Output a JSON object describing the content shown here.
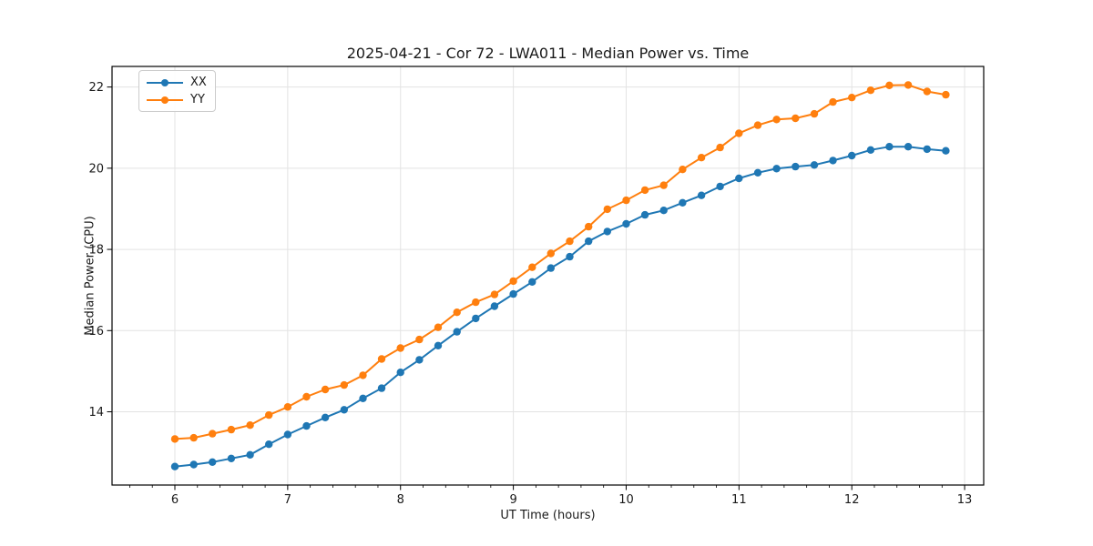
{
  "chart_data": {
    "type": "line",
    "title": "2025-04-21 - Cor 72 - LWA011 - Median Power vs. Time",
    "xlabel": "UT Time (hours)",
    "ylabel": "Median Power (CPU)",
    "xlim": [
      5.443,
      13.169
    ],
    "ylim": [
      12.196,
      22.507
    ],
    "x_ticks": [
      6,
      7,
      8,
      9,
      10,
      11,
      12,
      13
    ],
    "y_ticks": [
      14,
      16,
      18,
      20,
      22
    ],
    "x_minor_tick_step": 0.2,
    "grid": true,
    "legend_position": "upper-left",
    "axis_color": "#000000",
    "grid_color": "#e3e3e3",
    "text_color": "#1a1a1a",
    "x": [
      6.0,
      6.167,
      6.333,
      6.5,
      6.667,
      6.833,
      7.0,
      7.167,
      7.333,
      7.5,
      7.667,
      7.833,
      8.0,
      8.167,
      8.333,
      8.5,
      8.667,
      8.833,
      9.0,
      9.167,
      9.333,
      9.5,
      9.667,
      9.833,
      10.0,
      10.167,
      10.333,
      10.5,
      10.667,
      10.833,
      11.0,
      11.167,
      11.333,
      11.5,
      11.667,
      11.833,
      12.0,
      12.167,
      12.333,
      12.5,
      12.667,
      12.833
    ],
    "series": [
      {
        "name": "XX",
        "color": "#1f77b4",
        "values": [
          12.65,
          12.7,
          12.76,
          12.85,
          12.94,
          13.2,
          13.44,
          13.65,
          13.86,
          14.05,
          14.33,
          14.58,
          14.97,
          15.28,
          15.63,
          15.97,
          16.3,
          16.6,
          16.9,
          17.2,
          17.54,
          17.82,
          18.2,
          18.44,
          18.63,
          18.85,
          18.96,
          19.15,
          19.33,
          19.55,
          19.75,
          19.89,
          19.99,
          20.04,
          20.08,
          20.19,
          20.31,
          20.45,
          20.53,
          20.53,
          20.47,
          20.43
        ]
      },
      {
        "name": "YY",
        "color": "#ff7f0e",
        "values": [
          13.33,
          13.36,
          13.46,
          13.56,
          13.67,
          13.92,
          14.12,
          14.37,
          14.55,
          14.66,
          14.9,
          15.3,
          15.57,
          15.78,
          16.08,
          16.45,
          16.7,
          16.89,
          17.22,
          17.56,
          17.9,
          18.2,
          18.56,
          18.99,
          19.21,
          19.46,
          19.58,
          19.97,
          20.26,
          20.51,
          20.86,
          21.06,
          21.2,
          21.23,
          21.34,
          21.63,
          21.74,
          21.92,
          22.04,
          22.05,
          21.89,
          21.81
        ]
      }
    ]
  },
  "legend": {
    "items": [
      {
        "label": "XX"
      },
      {
        "label": "YY"
      }
    ]
  }
}
